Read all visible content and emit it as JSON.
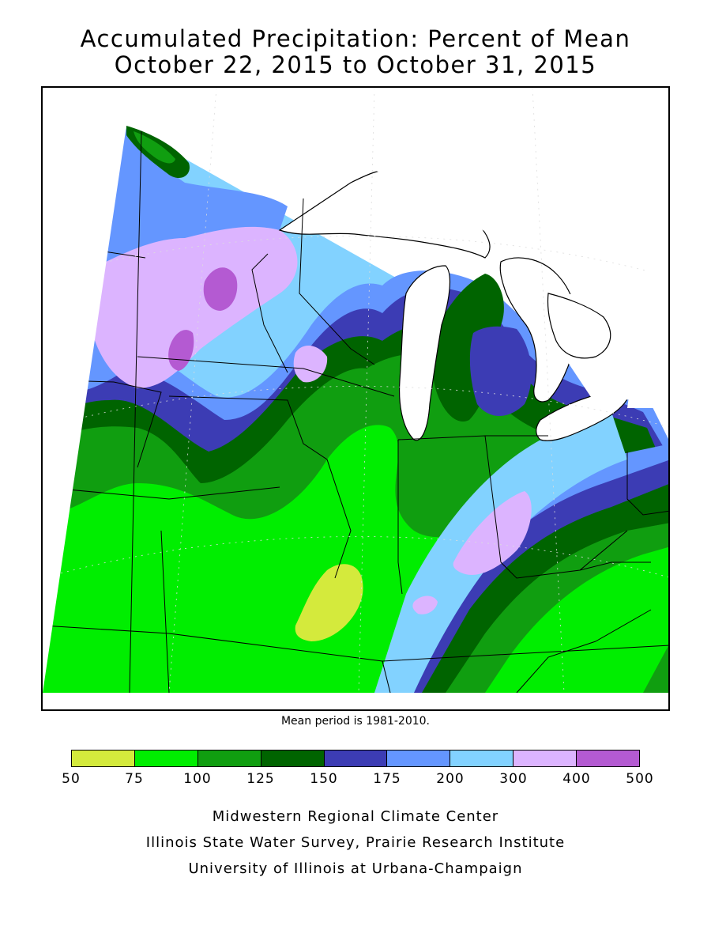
{
  "title": {
    "line1": "Accumulated Precipitation: Percent of Mean",
    "line2": "October 22, 2015 to October 31, 2015"
  },
  "mean_period_note": "Mean period is 1981-2010.",
  "legend": {
    "colors": [
      "#d4ea3c",
      "#00ee00",
      "#109e10",
      "#006400",
      "#3c3cb4",
      "#6496ff",
      "#82d2ff",
      "#dcb4ff",
      "#b45ad2"
    ],
    "ticks": [
      "50",
      "75",
      "100",
      "125",
      "150",
      "175",
      "200",
      "300",
      "400",
      "500"
    ]
  },
  "credits": {
    "line1": "Midwestern Regional Climate Center",
    "line2": "Illinois State Water Survey, Prairie Research Institute",
    "line3": "University of Illinois at Urbana-Champaign"
  },
  "map": {
    "lake_color": "#ffffff",
    "outline_color": "#000000"
  }
}
